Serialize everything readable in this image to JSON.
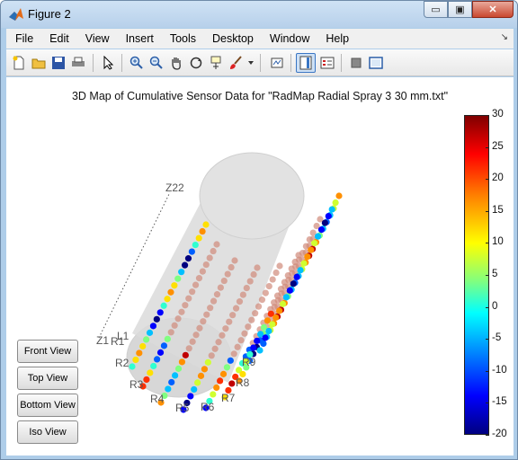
{
  "window": {
    "title": "Figure 2",
    "minimize_label": "▭",
    "restore_label": "▣",
    "close_label": "✕"
  },
  "menubar": {
    "items": [
      "File",
      "Edit",
      "View",
      "Insert",
      "Tools",
      "Desktop",
      "Window",
      "Help"
    ],
    "overflow_arrow": "↘"
  },
  "toolbar": {
    "icons": [
      "new-figure-icon",
      "open-file-icon",
      "save-icon",
      "print-icon",
      "select-arrow-icon",
      "zoom-in-icon",
      "zoom-out-icon",
      "pan-hand-icon",
      "rotate-3d-icon",
      "data-cursor-icon",
      "brush-icon",
      "link-plot-icon",
      "colorbar-icon",
      "legend-icon",
      "hide-tools-icon",
      "dock-icon"
    ]
  },
  "plot": {
    "title": "3D Map of Cumulative Sensor Data for \"RadMap Radial Spray 3 30 mm.txt\"",
    "labels": {
      "z22": "Z22",
      "z1": "Z1",
      "r1": "R1",
      "l1": "L1",
      "r2": "R2",
      "r3": "R3",
      "r4": "R4",
      "r5": "R5",
      "r6": "R6",
      "r7": "R7",
      "r8": "R8",
      "r9": "R9"
    }
  },
  "colorbar": {
    "ticks": [
      "30",
      "25",
      "20",
      "15",
      "10",
      "5",
      "0",
      "-5",
      "-10",
      "-15",
      "-20"
    ],
    "min": -20,
    "max": 30
  },
  "view_buttons": {
    "front": "Front View",
    "top": "Top View",
    "bottom": "Bottom View",
    "iso": "Iso View"
  },
  "colors": {
    "cylinder": "#d8d8d8",
    "accent": "#3a76c4"
  }
}
